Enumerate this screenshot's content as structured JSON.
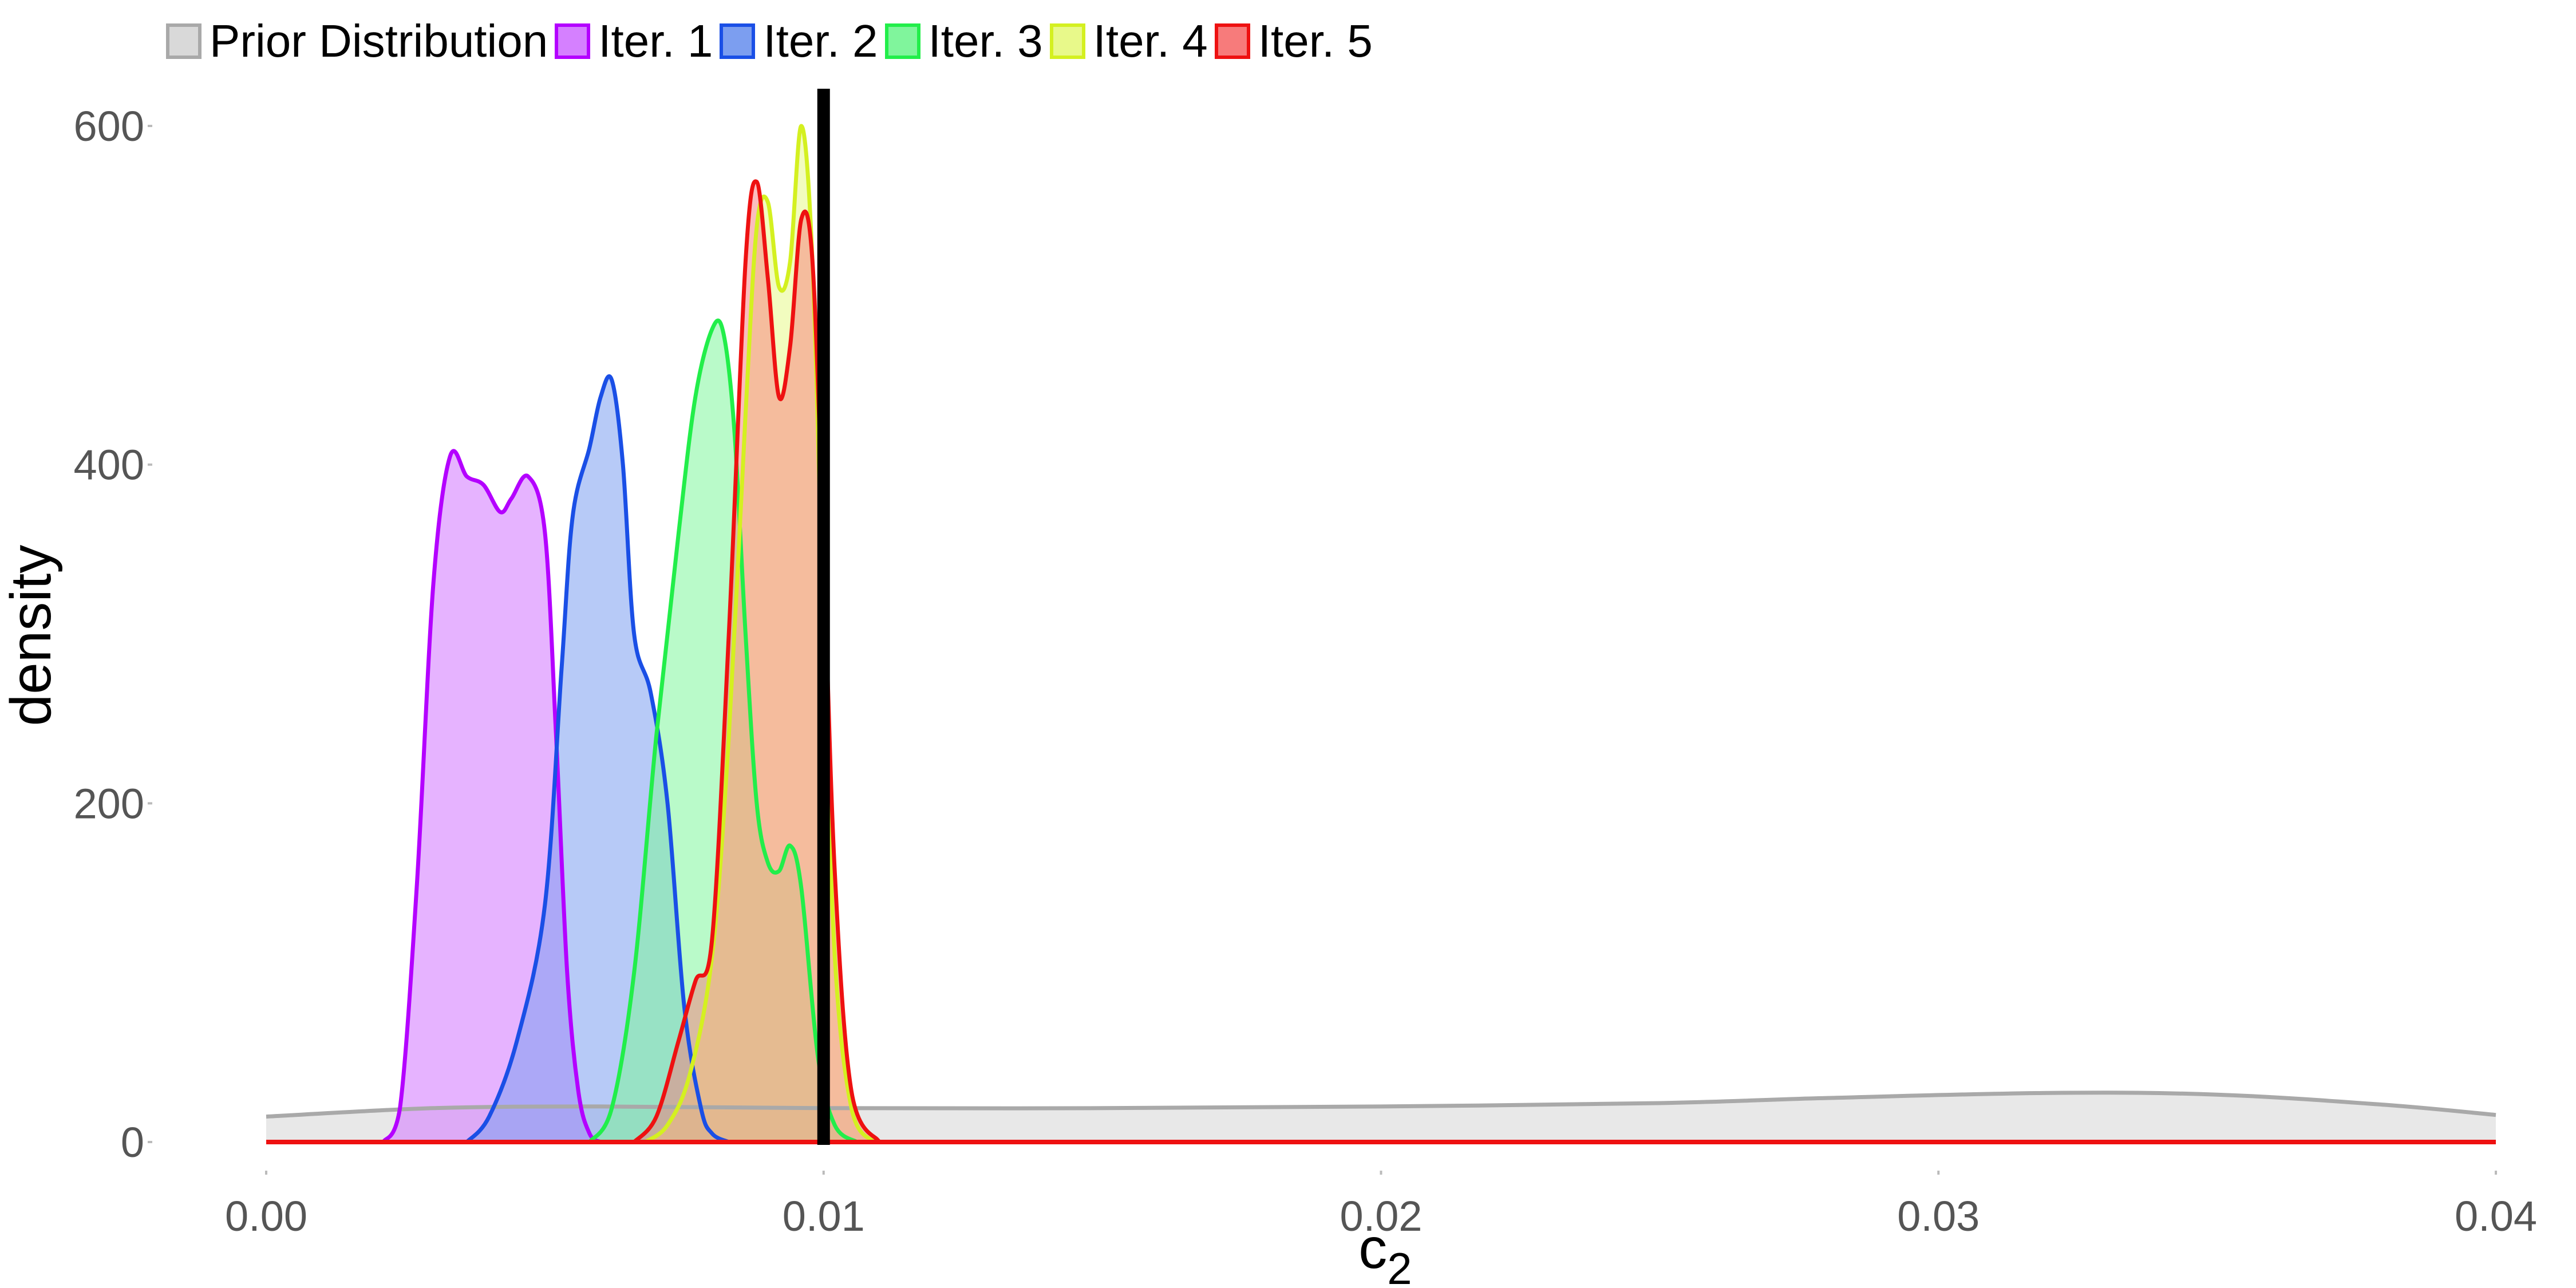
{
  "chart_data": {
    "type": "area",
    "xlabel": "c",
    "xlabel_subscript": "2",
    "ylabel": "density",
    "xlim": [
      0,
      0.04
    ],
    "ylim": [
      0,
      600
    ],
    "x_ticks": [
      0,
      0.01,
      0.02,
      0.03,
      0.04
    ],
    "x_tick_labels": [
      "0.00",
      "0.01",
      "0.02",
      "0.03",
      "0.04"
    ],
    "y_ticks": [
      0,
      200,
      400,
      600
    ],
    "y_tick_labels": [
      "0",
      "200",
      "400",
      "600"
    ],
    "grid": false,
    "legend_position": "top",
    "reference_line_x": 0.01,
    "series": [
      {
        "name": "Prior Distribution",
        "stroke": "#a9a9a9",
        "fill": "#d9d9d9",
        "fill_opacity": 0.6,
        "points": [
          [
            0.0,
            15
          ],
          [
            0.003,
            20
          ],
          [
            0.006,
            21
          ],
          [
            0.01,
            20
          ],
          [
            0.015,
            20
          ],
          [
            0.02,
            21
          ],
          [
            0.025,
            23
          ],
          [
            0.028,
            26
          ],
          [
            0.032,
            29
          ],
          [
            0.035,
            28
          ],
          [
            0.038,
            22
          ],
          [
            0.04,
            16
          ]
        ]
      },
      {
        "name": "Iter. 1",
        "stroke": "#b400ff",
        "fill": "#d580ff",
        "fill_opacity": 0.6,
        "points": [
          [
            0.0021,
            0
          ],
          [
            0.0024,
            20
          ],
          [
            0.0027,
            150
          ],
          [
            0.003,
            330
          ],
          [
            0.0033,
            405
          ],
          [
            0.0036,
            393
          ],
          [
            0.0039,
            388
          ],
          [
            0.0042,
            372
          ],
          [
            0.0044,
            380
          ],
          [
            0.0047,
            393
          ],
          [
            0.005,
            360
          ],
          [
            0.0052,
            240
          ],
          [
            0.0054,
            100
          ],
          [
            0.0056,
            30
          ],
          [
            0.0058,
            5
          ],
          [
            0.006,
            0
          ]
        ]
      },
      {
        "name": "Iter. 2",
        "stroke": "#1a4fe6",
        "fill": "#7c9ef0",
        "fill_opacity": 0.55,
        "points": [
          [
            0.0036,
            0
          ],
          [
            0.004,
            15
          ],
          [
            0.0045,
            60
          ],
          [
            0.005,
            140
          ],
          [
            0.0053,
            280
          ],
          [
            0.0055,
            370
          ],
          [
            0.0058,
            410
          ],
          [
            0.006,
            440
          ],
          [
            0.0062,
            450
          ],
          [
            0.0064,
            400
          ],
          [
            0.0066,
            300
          ],
          [
            0.0069,
            265
          ],
          [
            0.0072,
            200
          ],
          [
            0.0075,
            80
          ],
          [
            0.0078,
            20
          ],
          [
            0.008,
            5
          ],
          [
            0.0083,
            0
          ]
        ]
      },
      {
        "name": "Iter. 3",
        "stroke": "#22ee4a",
        "fill": "#80f59c",
        "fill_opacity": 0.55,
        "points": [
          [
            0.0058,
            0
          ],
          [
            0.0062,
            20
          ],
          [
            0.0066,
            100
          ],
          [
            0.007,
            240
          ],
          [
            0.0074,
            360
          ],
          [
            0.0077,
            440
          ],
          [
            0.008,
            480
          ],
          [
            0.0082,
            478
          ],
          [
            0.0084,
            420
          ],
          [
            0.0086,
            300
          ],
          [
            0.0088,
            200
          ],
          [
            0.009,
            165
          ],
          [
            0.0092,
            160
          ],
          [
            0.0094,
            175
          ],
          [
            0.0096,
            150
          ],
          [
            0.0099,
            50
          ],
          [
            0.0102,
            10
          ],
          [
            0.0106,
            0
          ]
        ]
      },
      {
        "name": "Iter. 4",
        "stroke": "#d4f020",
        "fill": "#e8f98a",
        "fill_opacity": 0.55,
        "points": [
          [
            0.0068,
            0
          ],
          [
            0.0072,
            10
          ],
          [
            0.0076,
            40
          ],
          [
            0.008,
            110
          ],
          [
            0.0083,
            240
          ],
          [
            0.0086,
            430
          ],
          [
            0.0088,
            540
          ],
          [
            0.009,
            555
          ],
          [
            0.0092,
            505
          ],
          [
            0.0094,
            520
          ],
          [
            0.0096,
            600
          ],
          [
            0.0098,
            520
          ],
          [
            0.01,
            300
          ],
          [
            0.0102,
            110
          ],
          [
            0.0105,
            20
          ],
          [
            0.0109,
            0
          ]
        ]
      },
      {
        "name": "Iter. 5",
        "stroke": "#ee1111",
        "fill": "#f77b7b",
        "fill_opacity": 0.5,
        "points": [
          [
            0.0066,
            0
          ],
          [
            0.007,
            15
          ],
          [
            0.0074,
            60
          ],
          [
            0.0077,
            95
          ],
          [
            0.008,
            120
          ],
          [
            0.0083,
            300
          ],
          [
            0.0086,
            520
          ],
          [
            0.0088,
            567
          ],
          [
            0.009,
            510
          ],
          [
            0.0092,
            440
          ],
          [
            0.0094,
            470
          ],
          [
            0.0096,
            545
          ],
          [
            0.0098,
            520
          ],
          [
            0.01,
            350
          ],
          [
            0.0102,
            160
          ],
          [
            0.0105,
            30
          ],
          [
            0.011,
            0
          ]
        ]
      }
    ]
  }
}
